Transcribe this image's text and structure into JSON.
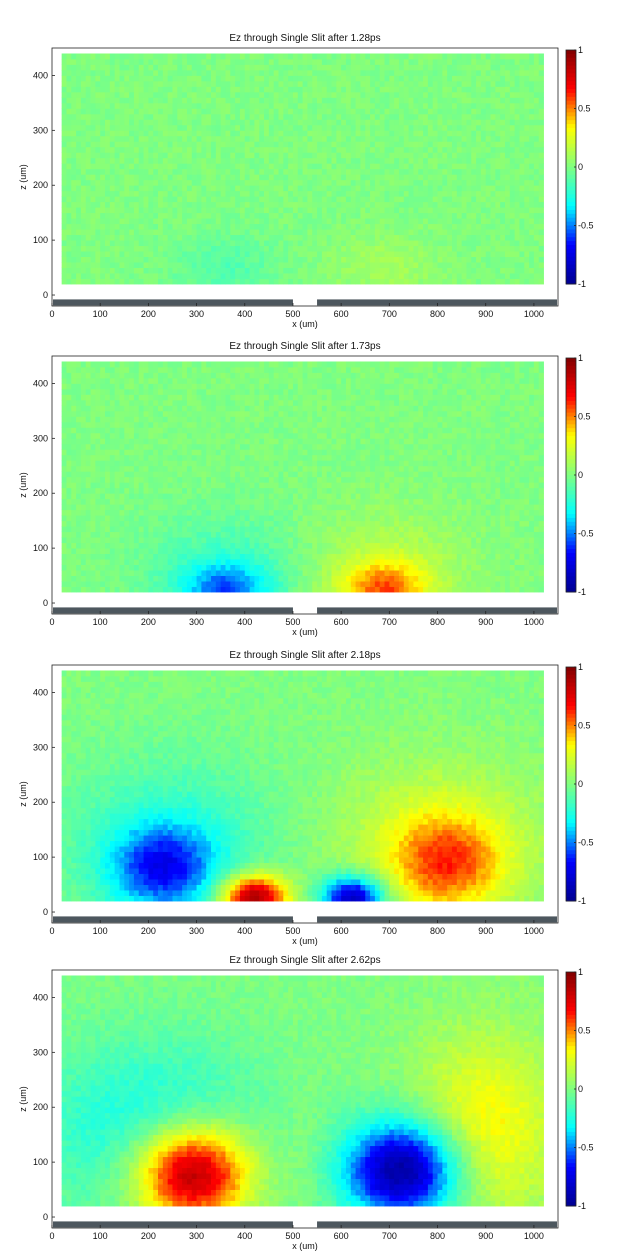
{
  "colorbar": {
    "ticks": [
      "1",
      "0.5",
      "0",
      "-0.5",
      "-1"
    ],
    "colormap": "jet",
    "colors": [
      "#00008f",
      "#0000ff",
      "#00ffff",
      "#80ff80",
      "#ffff00",
      "#ff0000",
      "#800000"
    ]
  },
  "barrier_color": "#4d575e",
  "chart_data": [
    {
      "type": "heatmap",
      "title": "Ez through Single Slit after 1.28ps",
      "xlabel": "x (um)",
      "ylabel": "z (um)",
      "xlim": [
        0,
        1050
      ],
      "ylim": [
        -20,
        450
      ],
      "xticks": [
        0,
        100,
        200,
        300,
        400,
        500,
        600,
        700,
        800,
        900,
        1000
      ],
      "yticks": [
        0,
        100,
        200,
        300,
        400
      ],
      "clim": [
        -1,
        1
      ],
      "grid": false,
      "data_extent": {
        "x": [
          20,
          1020
        ],
        "z": [
          20,
          440
        ]
      },
      "slit_x": [
        500,
        550
      ],
      "field_features": [
        {
          "x": 360,
          "z": 50,
          "sx": 110,
          "sz": 60,
          "value": -0.12
        },
        {
          "x": 690,
          "z": 50,
          "sx": 110,
          "sz": 60,
          "value": 0.1
        }
      ]
    },
    {
      "type": "heatmap",
      "title": "Ez through Single Slit after 1.73ps",
      "xlabel": "x (um)",
      "ylabel": "z (um)",
      "xlim": [
        0,
        1050
      ],
      "ylim": [
        -20,
        450
      ],
      "xticks": [
        0,
        100,
        200,
        300,
        400,
        500,
        600,
        700,
        800,
        900,
        1000
      ],
      "yticks": [
        0,
        100,
        200,
        300,
        400
      ],
      "clim": [
        -1,
        1
      ],
      "grid": false,
      "data_extent": {
        "x": [
          20,
          1020
        ],
        "z": [
          20,
          440
        ]
      },
      "slit_x": [
        500,
        550
      ],
      "field_features": [
        {
          "x": 360,
          "z": 25,
          "sx": 90,
          "sz": 50,
          "value": -0.45
        },
        {
          "x": 360,
          "z": 60,
          "sx": 170,
          "sz": 110,
          "value": -0.15
        },
        {
          "x": 690,
          "z": 25,
          "sx": 90,
          "sz": 50,
          "value": 0.45
        },
        {
          "x": 690,
          "z": 60,
          "sx": 170,
          "sz": 110,
          "value": 0.15
        }
      ]
    },
    {
      "type": "heatmap",
      "title": "Ez through Single Slit after 2.18ps",
      "xlabel": "x (um)",
      "ylabel": "z (um)",
      "xlim": [
        0,
        1050
      ],
      "ylim": [
        -20,
        450
      ],
      "xticks": [
        0,
        100,
        200,
        300,
        400,
        500,
        600,
        700,
        800,
        900,
        1000
      ],
      "yticks": [
        0,
        100,
        200,
        300,
        400
      ],
      "clim": [
        -1,
        1
      ],
      "grid": false,
      "data_extent": {
        "x": [
          20,
          1020
        ],
        "z": [
          20,
          440
        ]
      },
      "slit_x": [
        500,
        550
      ],
      "field_features": [
        {
          "x": 420,
          "z": 28,
          "sx": 70,
          "sz": 40,
          "value": 0.95
        },
        {
          "x": 625,
          "z": 28,
          "sx": 65,
          "sz": 38,
          "value": -0.9
        },
        {
          "x": 230,
          "z": 80,
          "sx": 110,
          "sz": 80,
          "value": -0.55
        },
        {
          "x": 820,
          "z": 90,
          "sx": 120,
          "sz": 90,
          "value": 0.45
        },
        {
          "x": 250,
          "z": 130,
          "sx": 220,
          "sz": 150,
          "value": -0.2
        },
        {
          "x": 800,
          "z": 130,
          "sx": 220,
          "sz": 150,
          "value": 0.2
        }
      ]
    },
    {
      "type": "heatmap",
      "title": "Ez through Single Slit after 2.62ps",
      "xlabel": "x (um)",
      "ylabel": "z (um)",
      "xlim": [
        0,
        1050
      ],
      "ylim": [
        -20,
        450
      ],
      "xticks": [
        0,
        100,
        200,
        300,
        400,
        500,
        600,
        700,
        800,
        900,
        1000
      ],
      "yticks": [
        0,
        100,
        200,
        300,
        400
      ],
      "clim": [
        -1,
        1
      ],
      "grid": false,
      "data_extent": {
        "x": [
          20,
          1020
        ],
        "z": [
          20,
          440
        ]
      },
      "slit_x": [
        500,
        550
      ],
      "field_features": [
        {
          "x": 290,
          "z": 80,
          "sx": 120,
          "sz": 90,
          "value": 1.0
        },
        {
          "x": 730,
          "z": 85,
          "sx": 120,
          "sz": 90,
          "value": -1.0
        },
        {
          "x": 200,
          "z": 160,
          "sx": 230,
          "sz": 160,
          "value": -0.3
        },
        {
          "x": 900,
          "z": 160,
          "sx": 150,
          "sz": 170,
          "value": 0.35
        },
        {
          "x": 525,
          "z": 120,
          "sx": 40,
          "sz": 120,
          "value": 0.05
        }
      ]
    }
  ]
}
